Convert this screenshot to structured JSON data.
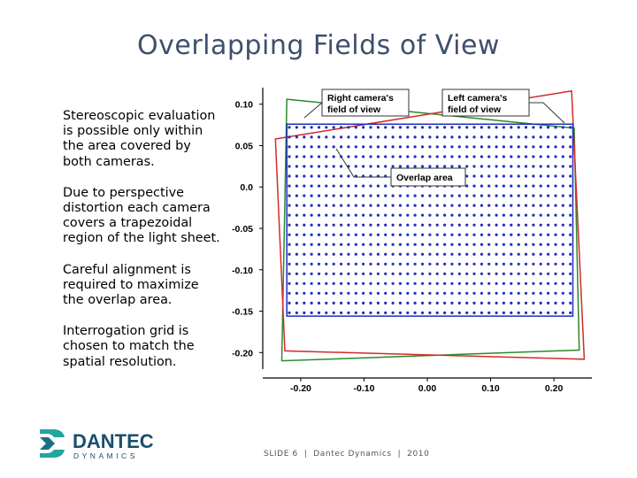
{
  "slide": {
    "title": "Overlapping Fields of View",
    "paragraphs": [
      "Stereoscopic evaluation is possible only within the area covered by both cameras.",
      "Due to perspective distortion each camera covers a trapezoidal region of the light sheet.",
      "Careful alignment is required to maximize the overlap area.",
      "Interrogation grid is chosen to match the spatial resolution."
    ]
  },
  "chart_data": {
    "type": "scatter",
    "title": "",
    "xlabel": "",
    "ylabel": "",
    "xlim": [
      -0.26,
      0.26
    ],
    "ylim": [
      -0.22,
      0.12
    ],
    "x_ticks": [
      "-0.20",
      "-0.10",
      "0.00",
      "0.10",
      "0.20"
    ],
    "y_ticks": [
      "0.10",
      "0.05",
      "0.0",
      "-0.05",
      "-0.10",
      "-0.15",
      "-0.20"
    ],
    "series": [
      {
        "name": "Interrogation grid",
        "color": "#1f2fbf",
        "x_range": [
          -0.218,
          0.226
        ],
        "x_count": 39,
        "y_range": [
          -0.152,
          0.072
        ],
        "y_count": 20
      }
    ],
    "regions": [
      {
        "name": "Overlap area",
        "color": "#1f2fbf",
        "polygon": [
          [
            -0.222,
            0.076
          ],
          [
            0.23,
            0.076
          ],
          [
            0.23,
            -0.156
          ],
          [
            -0.222,
            -0.156
          ]
        ]
      },
      {
        "name": "Left camera's field of view",
        "color": "#d42a2a",
        "polygon": [
          [
            -0.24,
            0.058
          ],
          [
            0.228,
            0.116
          ],
          [
            0.248,
            -0.208
          ],
          [
            -0.225,
            -0.198
          ]
        ]
      },
      {
        "name": "Right camera's field of view",
        "color": "#2a8a2a",
        "polygon": [
          [
            -0.222,
            0.106
          ],
          [
            0.232,
            0.071
          ],
          [
            0.24,
            -0.197
          ],
          [
            -0.23,
            -0.21
          ]
        ]
      }
    ],
    "annotations": [
      {
        "text": "Right camera's field of view",
        "target": "Right camera's field of view"
      },
      {
        "text": "Left camera's field of view",
        "target": "Left camera's field of view"
      },
      {
        "text": "Overlap area",
        "target": "Overlap area"
      }
    ]
  },
  "logo": {
    "name": "DANTEC",
    "sub": "DYNAMICS"
  },
  "footer": {
    "text": "SLIDE 6  |  Dantec Dynamics  |  2010"
  }
}
